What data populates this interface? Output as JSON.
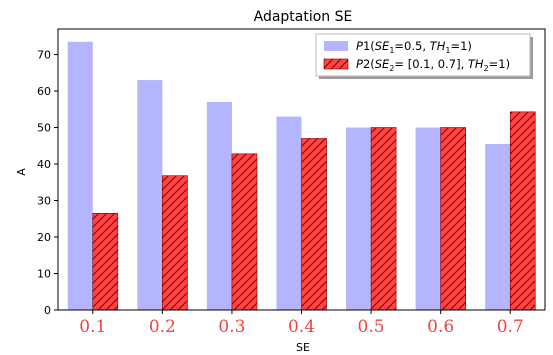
{
  "chart_data": {
    "type": "bar",
    "title": "Adaptation SE",
    "xlabel": "SE",
    "ylabel": "A",
    "categories": [
      "0.1",
      "0.2",
      "0.3",
      "0.4",
      "0.5",
      "0.6",
      "0.7"
    ],
    "ylim": [
      0,
      77
    ],
    "yticks": [
      0,
      10,
      20,
      30,
      40,
      50,
      60,
      70
    ],
    "grid": false,
    "legend_position": "top-right",
    "xtick_color": "#ee4444",
    "series": [
      {
        "name": "P1(SE1=0.5, TH1=1)",
        "legend": {
          "P": "P",
          "one": "1",
          "SE": "SE",
          "sub_se": "1",
          "mid": "=0.5, ",
          "TH": "TH",
          "sub_th": "1",
          "end": "=1)"
        },
        "values": [
          73.5,
          63.0,
          57.0,
          53.0,
          50.0,
          50.0,
          45.5
        ],
        "color": "#b4b4ff",
        "hatch": false
      },
      {
        "name": "P2(SE2= [0.1, 0.7], TH2=1)",
        "legend": {
          "P": "P",
          "one": "2",
          "SE": "SE",
          "sub_se": "2",
          "mid": "= [0.1, 0.7], ",
          "TH": "TH",
          "sub_th": "2",
          "end": "=1)"
        },
        "values": [
          26.5,
          36.8,
          42.8,
          47.0,
          50.0,
          50.0,
          54.3
        ],
        "color": "#ff4444",
        "hatch": true
      }
    ]
  }
}
